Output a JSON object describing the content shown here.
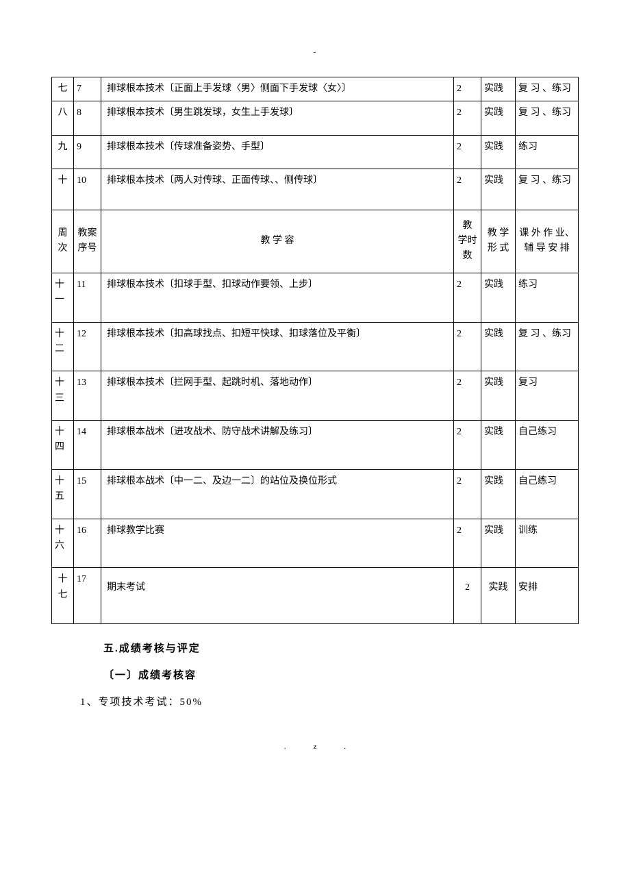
{
  "page_markers": {
    "top": "-",
    "bottom": ".z."
  },
  "table": {
    "headers": {
      "week": "周次",
      "seq": "教案序号",
      "content": "教 学 容",
      "hours": "教 学时 数",
      "format": "教 学形 式",
      "homework": "课 外 作 业、辅 导 安 排"
    },
    "rows_top": [
      {
        "week": "七",
        "seq": "7",
        "content": "排球根本技术〔正面上手发球〈男〉侧面下手发球〈女〉〕",
        "hours": "2",
        "format": "实践",
        "homework": "复 习 、练习"
      },
      {
        "week": "八",
        "seq": "8",
        "content": "排球根本技术〔男生跳发球，女生上手发球〕",
        "hours": "2",
        "format": "实践",
        "homework": "复 习 、练习"
      },
      {
        "week": "九",
        "seq": "9",
        "content": "排球根本技术〔传球准备姿势、手型〕",
        "hours": "2",
        "format": "实践",
        "homework": "练习"
      },
      {
        "week": "十",
        "seq": "10",
        "content": "排球根本技术〔两人对传球、正面传球、、侧传球〕",
        "hours": "2",
        "format": "实践",
        "homework": "复 习 、练习"
      }
    ],
    "rows_bottom": [
      {
        "week": "十一",
        "seq": "11",
        "content": "排球根本技术〔扣球手型、扣球动作要领、上步〕",
        "hours": "2",
        "format": "实践",
        "homework": "练习"
      },
      {
        "week": "十二",
        "seq": "12",
        "content": "排球根本技术〔扣高球找点、扣短平快球、扣球落位及平衡〕",
        "hours": "2",
        "format": "实践",
        "homework": "复 习 、练习"
      },
      {
        "week": "十三",
        "seq": "13",
        "content": "排球根本技术〔拦网手型、起跳时机、落地动作〕",
        "hours": "2",
        "format": "实践",
        "homework": "复习"
      },
      {
        "week": "十四",
        "seq": "14",
        "content": "排球根本战术〔进攻战术、防守战术讲解及练习〕",
        "hours": "2",
        "format": "实践",
        "homework": "自己练习"
      },
      {
        "week": "十五",
        "seq": "15",
        "content": "排球根本战术〔中一二、及边一二〕的站位及换位形式",
        "hours": "2",
        "format": "实践",
        "homework": "自己练习"
      },
      {
        "week": "十六",
        "seq": "16",
        "content": "排球教学比赛",
        "hours": "2",
        "format": "实践",
        "homework": "训练"
      },
      {
        "week": "十七",
        "seq": "17",
        "content": "期末考试",
        "hours": "2",
        "format": "实践",
        "homework": "安排"
      }
    ]
  },
  "sections": {
    "heading5": "五.成绩考核与评定",
    "sub1": "〔一〕成绩考核容",
    "item1": "1、专项技术考试：50%"
  }
}
